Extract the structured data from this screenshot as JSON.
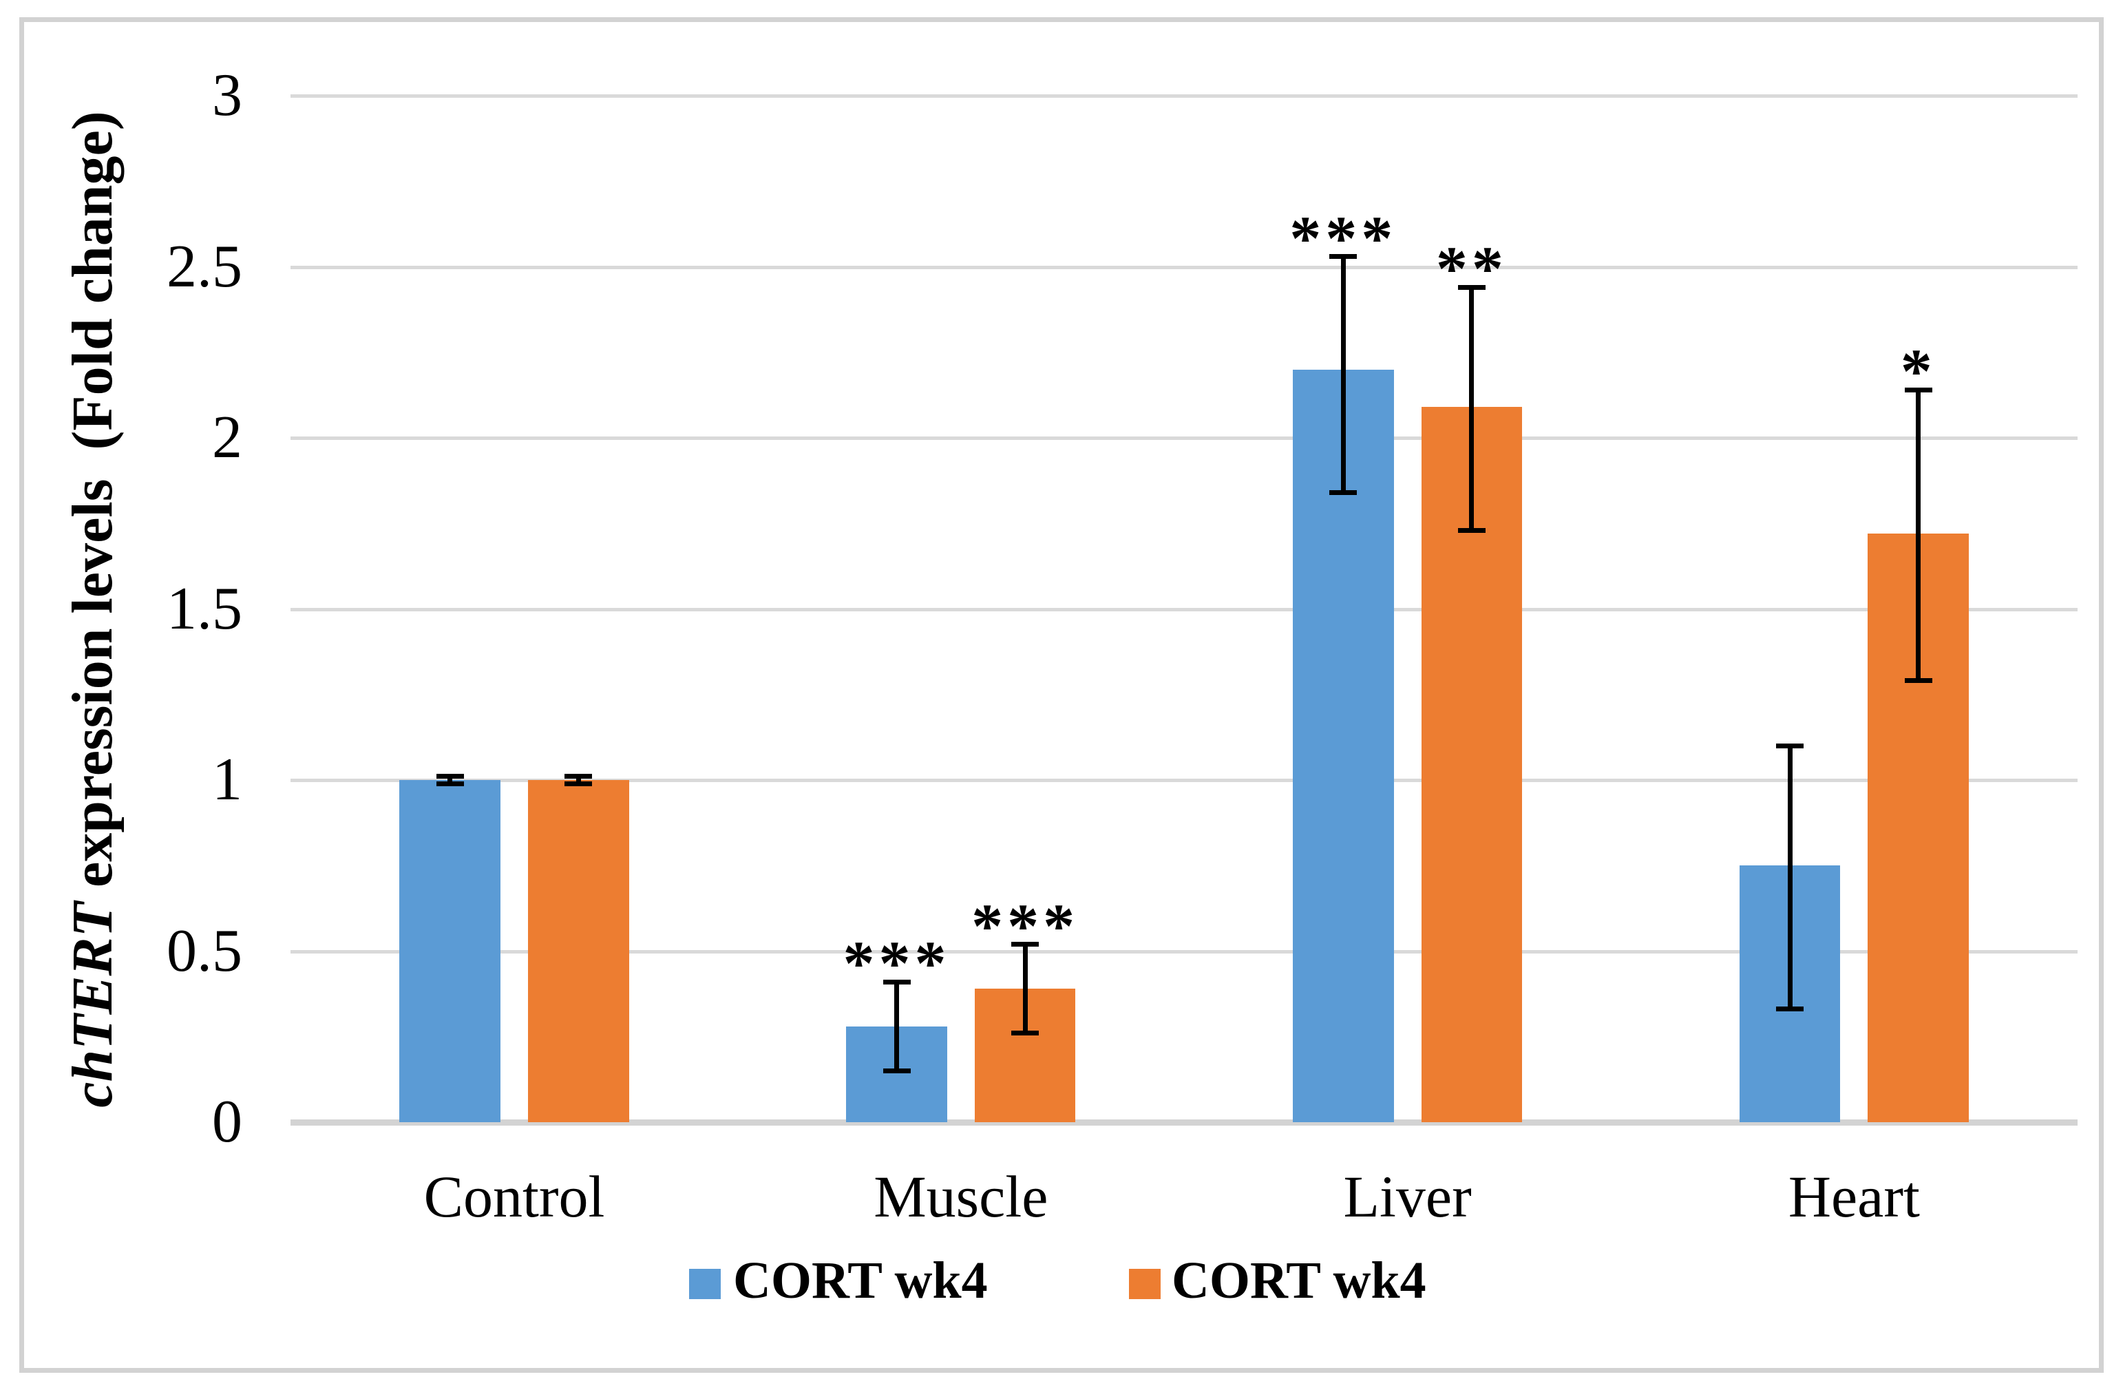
{
  "chart_data": {
    "type": "bar",
    "ylabel_italic": "chTERT",
    "ylabel_rest": " expression levels  (Fold change)",
    "xlabel": "",
    "categories": [
      "Control",
      "Muscle",
      "Liver",
      "Heart"
    ],
    "y_ticks": [
      "0",
      "0.5",
      "1",
      "1.5",
      "2",
      "2.5",
      "3"
    ],
    "y_tick_values": [
      0,
      0.5,
      1,
      1.5,
      2,
      2.5,
      3
    ],
    "ylim": [
      0,
      3
    ],
    "grid": true,
    "legend_position": "bottom",
    "bar_colors": {
      "series1": "#5B9BD5",
      "series2": "#ED7D31"
    },
    "gridline_color": "#D9D9D9",
    "error_bar_color": "#000000",
    "series": [
      {
        "name": "CORT wk4",
        "color": "#5B9BD5",
        "values": [
          1.0,
          0.28,
          2.2,
          0.75
        ],
        "err_up": [
          0.012,
          0.13,
          0.33,
          0.35
        ],
        "err_down": [
          0.012,
          0.13,
          0.36,
          0.42
        ],
        "significance": [
          "",
          "***",
          "***",
          ""
        ]
      },
      {
        "name": "CORT wk4",
        "color": "#ED7D31",
        "values": [
          1.0,
          0.39,
          2.09,
          1.72
        ],
        "err_up": [
          0.012,
          0.13,
          0.35,
          0.42
        ],
        "err_down": [
          0.012,
          0.13,
          0.36,
          0.43
        ],
        "significance": [
          "",
          "***",
          "**",
          "*"
        ]
      }
    ]
  }
}
